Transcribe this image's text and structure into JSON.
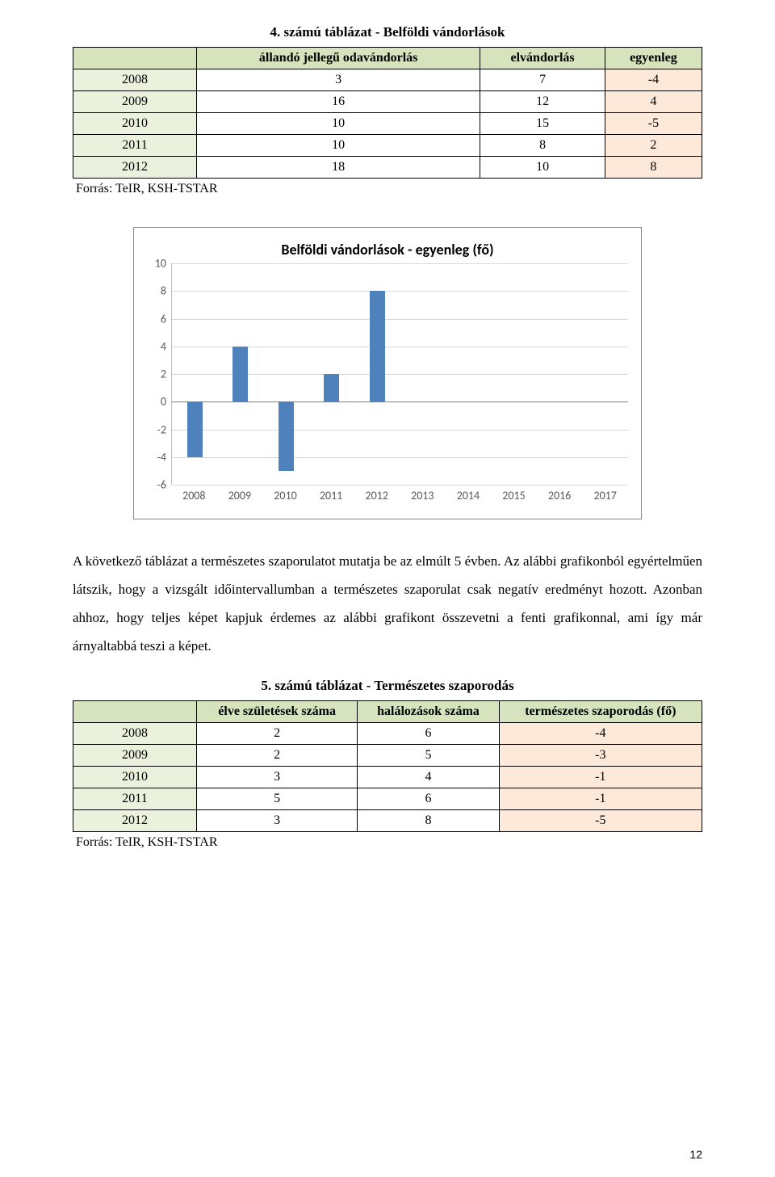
{
  "table1": {
    "title": "4. számú táblázat - Belföldi vándorlások",
    "headers": [
      "",
      "állandó jellegű odavándorlás",
      "elvándorlás",
      "egyenleg"
    ],
    "header_bg": "#d6e3bc",
    "row_year_bg": "#eaf1dd",
    "egyenleg_bg": "#fde9d9",
    "rows": [
      {
        "year": "2008",
        "in": "3",
        "out": "7",
        "bal": "-4"
      },
      {
        "year": "2009",
        "in": "16",
        "out": "12",
        "bal": "4"
      },
      {
        "year": "2010",
        "in": "10",
        "out": "15",
        "bal": "-5"
      },
      {
        "year": "2011",
        "in": "10",
        "out": "8",
        "bal": "2"
      },
      {
        "year": "2012",
        "in": "18",
        "out": "10",
        "bal": "8"
      }
    ],
    "source": "Forrás: TeIR, KSH-TSTAR"
  },
  "chart": {
    "title": "Belföldi vándorlások - egyenleg (fő)",
    "title_fontsize": 18,
    "bar_color": "#4f81bd",
    "grid_color": "#d9d9d9",
    "axis_color": "#808080",
    "label_color": "#595959",
    "label_fontsize": 14,
    "ymin": -6,
    "ymax": 10,
    "ytick_step": 2,
    "categories": [
      "2008",
      "2009",
      "2010",
      "2011",
      "2012",
      "2013",
      "2014",
      "2015",
      "2016",
      "2017"
    ],
    "values": [
      -4,
      4,
      -5,
      2,
      8,
      null,
      null,
      null,
      null,
      null
    ]
  },
  "paragraph": "A következő táblázat a természetes szaporulatot mutatja be az elmúlt 5 évben. Az alábbi grafikonból egyértelműen látszik, hogy a vizsgált időintervallumban a természetes szaporulat csak negatív eredményt hozott. Azonban ahhoz, hogy teljes képet kapjuk érdemes az alábbi grafikont összevetni a fenti grafikonnal, ami így már árnyaltabbá teszi a képet.",
  "table2": {
    "title": "5. számú táblázat - Természetes szaporodás",
    "headers": [
      "",
      "élve születések száma",
      "halálozások száma",
      "természetes szaporodás (fő)"
    ],
    "header_bg": "#d6e3bc",
    "row_year_bg": "#eaf1dd",
    "result_bg": "#fde9d9",
    "rows": [
      {
        "year": "2008",
        "b": "2",
        "d": "6",
        "r": "-4"
      },
      {
        "year": "2009",
        "b": "2",
        "d": "5",
        "r": "-3"
      },
      {
        "year": "2010",
        "b": "3",
        "d": "4",
        "r": "-1"
      },
      {
        "year": "2011",
        "b": "5",
        "d": "6",
        "r": "-1"
      },
      {
        "year": "2012",
        "b": "3",
        "d": "8",
        "r": "-5"
      }
    ],
    "source": "Forrás: TeIR, KSH-TSTAR"
  },
  "page_number": "12"
}
